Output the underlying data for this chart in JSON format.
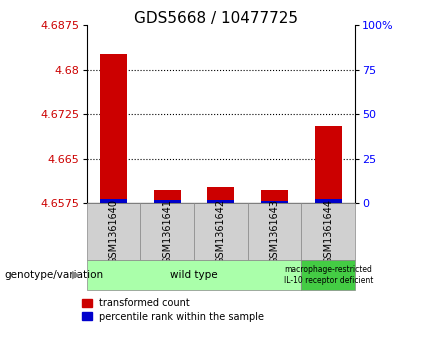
{
  "title": "GDS5668 / 10477725",
  "samples": [
    "GSM1361640",
    "GSM1361641",
    "GSM1361642",
    "GSM1361643",
    "GSM1361644"
  ],
  "red_values": [
    4.6826,
    4.6598,
    4.6602,
    4.6598,
    4.6705
  ],
  "blue_values": [
    4.6582,
    4.658,
    4.6581,
    4.6579,
    4.6582
  ],
  "base_value": 4.6575,
  "ylim_left": [
    4.6575,
    4.6875
  ],
  "yticks_left": [
    4.6575,
    4.665,
    4.6725,
    4.68,
    4.6875
  ],
  "yticks_right": [
    0,
    25,
    50,
    75,
    100
  ],
  "ylim_right": [
    0,
    100
  ],
  "bar_width": 0.5,
  "red_color": "#cc0000",
  "blue_color": "#0000cc",
  "grid_color": "black",
  "background_label_wt": "#aaffaa",
  "background_label_mut": "#44cc44",
  "label_wt": "wild type",
  "label_mut": "macrophage-restricted\nIL-10 receptor deficient",
  "wt_count": 4,
  "mut_count": 1,
  "legend_red": "transformed count",
  "legend_blue": "percentile rank within the sample",
  "genotype_label": "genotype/variation",
  "title_fontsize": 11,
  "tick_fontsize": 8,
  "sample_fontsize": 7,
  "geno_fontsize": 7.5,
  "legend_fontsize": 7
}
